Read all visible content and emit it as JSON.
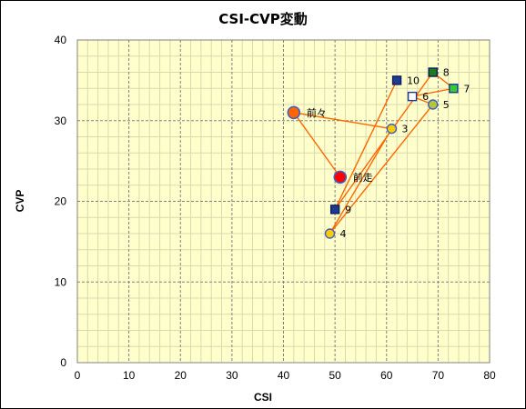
{
  "chart_data": {
    "type": "scatter",
    "title": "CSI-CVP変動",
    "xlabel": "CSI",
    "ylabel": "CVP",
    "xlim": [
      0,
      80
    ],
    "ylim": [
      0,
      40
    ],
    "xticks": [
      "0",
      "10",
      "20",
      "30",
      "40",
      "50",
      "60",
      "70",
      "80"
    ],
    "yticks": [
      "0",
      "10",
      "20",
      "30",
      "40"
    ],
    "grid": true,
    "colors": {
      "plot_bg": "#ffffcc",
      "line": "#ff6600",
      "grid_major": "#808080",
      "grid_minor": "#d9d9b0",
      "circle_fill": "#ffcc00",
      "circle_stroke": "#4060c0",
      "navy": "#1f3a93",
      "green": "#33cc33",
      "dark_green": "#1f7a1f",
      "white": "#ffffff",
      "red": "#ff0000"
    },
    "points": [
      {
        "label": "前走",
        "x": 51,
        "y": 23,
        "shape": "circle-large",
        "fill": "red"
      },
      {
        "label": "前々",
        "x": 42,
        "y": 31,
        "shape": "circle-large",
        "fill": "orange"
      },
      {
        "label": "3",
        "x": 61,
        "y": 29,
        "shape": "circle",
        "fill": "yellow"
      },
      {
        "label": "4",
        "x": 49,
        "y": 16,
        "shape": "circle",
        "fill": "yellow"
      },
      {
        "label": "5",
        "x": 69,
        "y": 32,
        "shape": "circle",
        "fill": "olive"
      },
      {
        "label": "6",
        "x": 65,
        "y": 33,
        "shape": "square",
        "fill": "white"
      },
      {
        "label": "7",
        "x": 73,
        "y": 34,
        "shape": "square",
        "fill": "green"
      },
      {
        "label": "8",
        "x": 69,
        "y": 36,
        "shape": "square",
        "fill": "dark_green"
      },
      {
        "label": "9",
        "x": 50,
        "y": 19,
        "shape": "square",
        "fill": "navy"
      },
      {
        "label": "10",
        "x": 62,
        "y": 35,
        "shape": "square",
        "fill": "navy"
      }
    ]
  }
}
